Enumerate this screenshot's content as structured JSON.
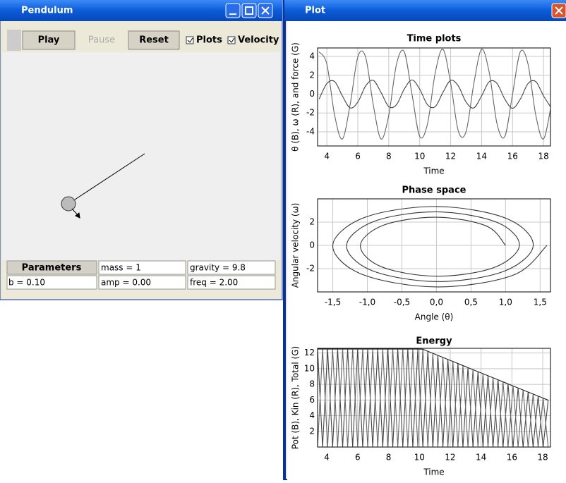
{
  "pendulum_window": {
    "title": "Pendulum",
    "buttons": [
      "Play",
      "Pause",
      "Reset"
    ],
    "checkboxes": [
      "Plots",
      "Velocity"
    ],
    "parameters": {
      "header": "Parameters",
      "fields": [
        "mass = 1",
        "gravity = 9.8",
        "b = 0.10",
        "amp = 0.00",
        "freq = 2.00"
      ]
    }
  },
  "plot_window": {
    "title": "Plot",
    "charts": [
      {
        "type": "line",
        "title": "Time plots",
        "x_label": "Time",
        "y_label": "θ (B), ω (R), and force (G)",
        "xlim": [
          3.4,
          18.45
        ],
        "ylim": [
          -5.5,
          4.9
        ],
        "xticks": [
          4,
          6,
          8,
          10,
          12,
          14,
          16,
          18
        ],
        "yticks": [
          4,
          2,
          0,
          -2,
          -4
        ],
        "grid": true,
        "smooth": true,
        "x": [
          3.5,
          4,
          4.5,
          5,
          5.5,
          6,
          6.5,
          7,
          7.5,
          8,
          8.5,
          9,
          9.5,
          10,
          10.5,
          11,
          11.5,
          12,
          12.5,
          13,
          13.5,
          14,
          14.5,
          15,
          15.5,
          16,
          16.5,
          17,
          17.5,
          18,
          18.5
        ],
        "series": [
          {
            "color": "#444444",
            "values": [
              -0.53,
              1.12,
              1.33,
              -0.18,
              -1.46,
              -0.85,
              0.85,
              1.46,
              0.18,
              -1.33,
              -1.12,
              0.53,
              1.5,
              0.53,
              -1.12,
              -1.33,
              0.18,
              1.46,
              0.85,
              -0.85,
              -1.46,
              -0.18,
              1.33,
              1.12,
              -0.53,
              -1.5,
              -0.53,
              1.12,
              1.33,
              -0.18,
              -1.46
            ]
          },
          {
            "color": "#666666",
            "values": [
              4.49,
              3.18,
              -2.23,
              -4.76,
              -1.15,
              3.95,
              3.95,
              -1.15,
              -4.76,
              -2.23,
              3.18,
              4.49,
              0,
              -4.49,
              -3.18,
              2.23,
              4.76,
              1.15,
              -3.95,
              -3.95,
              1.15,
              4.76,
              2.23,
              -3.18,
              -4.49,
              0,
              4.49,
              3.18,
              -2.23,
              -4.76,
              -1.15
            ]
          }
        ]
      },
      {
        "type": "line",
        "title": "Phase space",
        "x_label": "Angle (θ)",
        "y_label": "Angular velocity (ω)",
        "xlim": [
          -1.72,
          1.65
        ],
        "ylim": [
          -4,
          4
        ],
        "xticks": [
          {
            "value": -1.5,
            "label": "-1,5"
          },
          {
            "value": -1,
            "label": "-1,0"
          },
          {
            "value": -0.5,
            "label": "-0,5"
          },
          {
            "value": 0,
            "label": "0,0"
          },
          {
            "value": 0.5,
            "label": "0,5"
          },
          {
            "value": 1,
            "label": "1,0"
          },
          {
            "value": 1.5,
            "label": "1,5"
          }
        ],
        "yticks": [
          2,
          0,
          -2
        ],
        "grid": true,
        "smooth": true,
        "series": [
          {
            "color": "#333333",
            "x": [
              1.6,
              1.11,
              0,
              -1.08,
              -1.5,
              -1.04,
              0,
              1.01,
              1.4,
              0.97,
              0,
              -0.94,
              -1.3,
              -0.9,
              0,
              0.87,
              1.2,
              0.83,
              0,
              -0.8,
              -1.1,
              -0.76,
              0,
              0.72,
              1.0
            ],
            "values": [
              0,
              -2.56,
              -3.57,
              -2.48,
              0,
              2.4,
              3.34,
              2.32,
              0,
              -2.24,
              -3.11,
              -2.15,
              0,
              2.07,
              2.88,
              1.99,
              0,
              -1.91,
              -2.65,
              -1.83,
              0,
              1.75,
              2.42,
              1.67,
              0
            ]
          }
        ]
      },
      {
        "type": "line",
        "title": "Energy",
        "x_label": "Time",
        "y_label": "Pot (B), Kin (R), Total (G)",
        "xlim": [
          3.4,
          18.5
        ],
        "ylim": [
          0,
          12.6
        ],
        "xticks": [
          4,
          6,
          8,
          10,
          12,
          14,
          16,
          18
        ],
        "yticks": [
          12,
          10,
          8,
          6,
          4,
          2
        ],
        "grid": true,
        "smooth": false,
        "x": [
          3.4,
          3.725,
          4.05,
          4.375,
          4.7,
          5.025,
          5.35,
          5.675,
          6.0,
          6.325,
          6.65,
          6.975,
          7.3,
          7.625,
          7.95,
          8.275,
          8.6,
          8.925,
          9.25,
          9.575,
          9.9,
          10.225,
          10.55,
          10.875,
          11.2,
          11.525,
          11.85,
          12.175,
          12.5,
          12.825,
          13.15,
          13.475,
          13.8,
          14.125,
          14.45,
          14.775,
          15.1,
          15.425,
          15.75,
          16.075,
          16.4,
          16.725,
          17.05,
          17.375,
          17.7,
          18.025,
          18.35
        ],
        "series": [
          {
            "color": "#444444",
            "values": [
              12.5,
              0,
              12.5,
              0,
              12.5,
              0,
              12.5,
              0,
              12.5,
              0,
              12.5,
              0,
              12.5,
              0,
              12.5,
              0,
              12.5,
              0,
              12.5,
              0,
              12.5,
              0,
              12.22,
              0,
              11.7,
              0,
              11.18,
              0,
              10.66,
              0,
              10.14,
              0,
              9.62,
              0,
              9.1,
              0,
              8.58,
              0,
              8.06,
              0,
              7.54,
              0,
              7.02,
              0,
              6.5,
              0,
              5.98
            ]
          },
          {
            "color": "#666666",
            "values": [
              0,
              12.5,
              0,
              12.5,
              0,
              12.5,
              0,
              12.5,
              0,
              12.5,
              0,
              12.5,
              0,
              12.5,
              0,
              12.5,
              0,
              12.5,
              0,
              12.5,
              0,
              12.48,
              0,
              11.96,
              0,
              11.44,
              0,
              10.92,
              0,
              10.4,
              0,
              9.88,
              0,
              9.36,
              0,
              8.84,
              0,
              8.32,
              0,
              7.8,
              0,
              7.28,
              0,
              6.76,
              0,
              6.24,
              0
            ]
          },
          {
            "color": "#222222",
            "values": [
              12.5,
              12.5,
              12.5,
              12.5,
              12.5,
              12.5,
              12.5,
              12.5,
              12.5,
              12.5,
              12.5,
              12.5,
              12.5,
              12.5,
              12.5,
              12.5,
              12.5,
              12.5,
              12.5,
              12.5,
              12.5,
              12.48,
              12.22,
              11.96,
              11.7,
              11.44,
              11.18,
              10.92,
              10.66,
              10.4,
              10.14,
              9.88,
              9.62,
              9.36,
              9.1,
              8.84,
              8.58,
              8.32,
              8.06,
              7.8,
              7.54,
              7.28,
              7.02,
              6.76,
              6.5,
              6.24,
              5.98
            ]
          }
        ]
      }
    ]
  }
}
